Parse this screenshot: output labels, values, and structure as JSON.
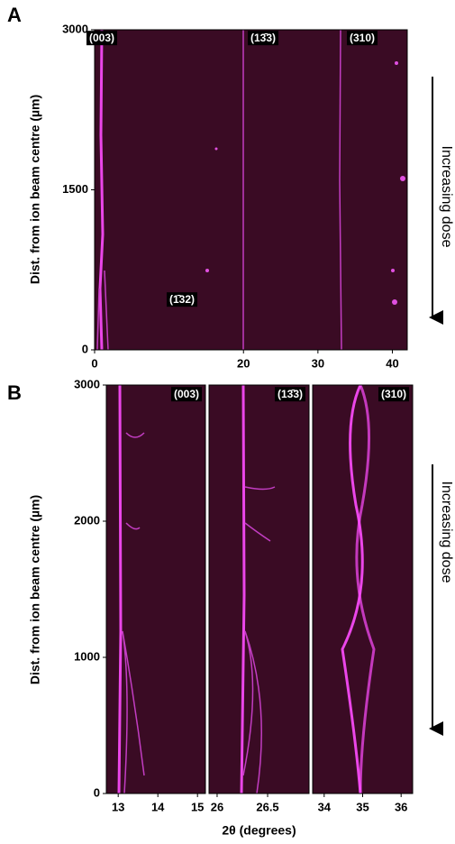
{
  "chart_data": [
    {
      "type": "heatmap",
      "panel_label": "A",
      "ylabel": "Dist. from ion beam centre (µm)",
      "xlim": [
        0,
        42
      ],
      "xticks": [
        0,
        20,
        30,
        40
      ],
      "ylim": [
        0,
        3000
      ],
      "yticks": [
        0,
        1500,
        3000
      ],
      "annotations": [
        "(003)",
        "(13̄3)",
        "(310)",
        "(1̄32)"
      ],
      "side_note": "Increasing dose"
    },
    {
      "type": "heatmap",
      "panel_label": "B",
      "ylabel": "Dist. from ion beam centre (µm)",
      "xlim": [
        12.7,
        15.2
      ],
      "xticks": [
        13,
        14,
        15
      ],
      "ylim": [
        0,
        3000
      ],
      "yticks": [
        0,
        1000,
        2000,
        3000
      ],
      "annotations": [
        "(003)"
      ],
      "side_note": "Increasing dose"
    },
    {
      "type": "heatmap",
      "xlabel": "2θ (degrees)",
      "xlim": [
        25.92,
        26.91
      ],
      "xticks": [
        26,
        26.5
      ],
      "ylim": [
        0,
        3000
      ],
      "yticks": [],
      "annotations": [
        "(13̄3)"
      ]
    },
    {
      "type": "heatmap",
      "xlim": [
        33.7,
        36.3
      ],
      "xticks": [
        34,
        35,
        36
      ],
      "ylim": [
        0,
        3000
      ],
      "yticks": [],
      "annotations": [
        "(310)"
      ]
    }
  ]
}
